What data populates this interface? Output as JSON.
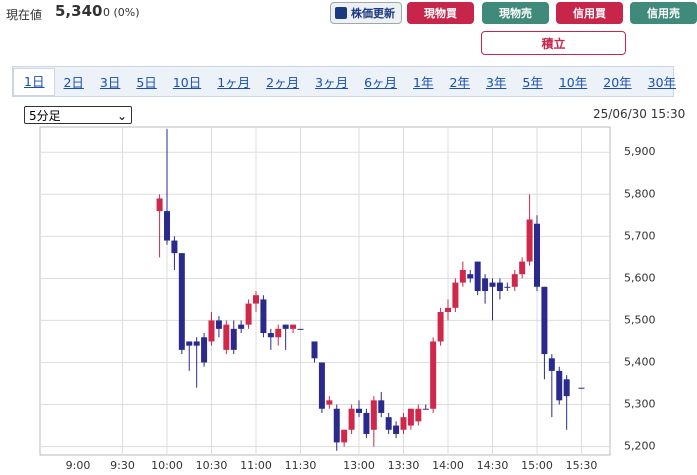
{
  "header": {
    "label": "現在値",
    "price": "5,340",
    "change": "0 (0%)"
  },
  "buttons": [
    "株価更新",
    "現物買",
    "現物売",
    "信用買",
    "信用売"
  ],
  "save_button": "積立",
  "tabs": [
    "1日",
    "2日",
    "3日",
    "5日",
    "10日",
    "1ヶ月",
    "2ヶ月",
    "3ヶ月",
    "6ヶ月",
    "1年",
    "2年",
    "3年",
    "5年",
    "10年",
    "20年",
    "30年"
  ],
  "interval_select": "5分足",
  "timestamp": "25/06/30 15:30",
  "chart_data": {
    "type": "candlestick",
    "up_color": "#d0284a",
    "down_color": "#2a2a8c",
    "grid": true,
    "x": [
      "9:55",
      "10:00",
      "10:05",
      "10:10",
      "10:15",
      "10:20",
      "10:25",
      "10:30",
      "10:35",
      "10:40",
      "10:45",
      "10:50",
      "10:55",
      "11:00",
      "11:05",
      "11:10",
      "11:15",
      "11:20",
      "11:25",
      "11:30",
      "12:30",
      "12:35",
      "12:40",
      "12:45",
      "12:50",
      "12:55",
      "13:00",
      "13:05",
      "13:10",
      "13:15",
      "13:20",
      "13:25",
      "13:30",
      "13:35",
      "13:40",
      "13:45",
      "13:50",
      "13:55",
      "14:00",
      "14:05",
      "14:10",
      "14:15",
      "14:20",
      "14:25",
      "14:30",
      "14:35",
      "14:40",
      "14:45",
      "14:50",
      "14:55",
      "15:00",
      "15:05",
      "15:10",
      "15:15",
      "15:20",
      "15:30"
    ],
    "open": [
      5760,
      5760,
      5690,
      5660,
      5450,
      5450,
      5460,
      5450,
      5500,
      5430,
      5480,
      5490,
      5490,
      5540,
      5550,
      5470,
      5460,
      5490,
      5480,
      5480,
      5450,
      5400,
      5300,
      5290,
      5210,
      5240,
      5290,
      5280,
      5240,
      5310,
      5270,
      5250,
      5240,
      5250,
      5260,
      5290,
      5290,
      5450,
      5520,
      5530,
      5590,
      5610,
      5640,
      5600,
      5590,
      5590,
      5580,
      5580,
      5610,
      5640,
      5730,
      5580,
      5410,
      5380,
      5360,
      5340
    ],
    "high": [
      5800,
      5955,
      5700,
      5660,
      5450,
      5460,
      5470,
      5520,
      5510,
      5500,
      5500,
      5500,
      5550,
      5570,
      5560,
      5480,
      5490,
      5490,
      5490,
      5480,
      5450,
      5400,
      5320,
      5300,
      5240,
      5300,
      5310,
      5290,
      5320,
      5330,
      5280,
      5260,
      5280,
      5290,
      5300,
      5300,
      5460,
      5530,
      5550,
      5600,
      5640,
      5620,
      5640,
      5610,
      5600,
      5600,
      5590,
      5620,
      5650,
      5800,
      5750,
      5580,
      5420,
      5390,
      5370,
      5340
    ],
    "low": [
      5650,
      5680,
      5620,
      5420,
      5380,
      5340,
      5390,
      5440,
      5460,
      5420,
      5420,
      5470,
      5480,
      5520,
      5460,
      5430,
      5440,
      5430,
      5470,
      5480,
      5400,
      5280,
      5290,
      5190,
      5200,
      5230,
      5270,
      5220,
      5200,
      5270,
      5230,
      5220,
      5230,
      5240,
      5250,
      5290,
      5280,
      5440,
      5500,
      5520,
      5580,
      5590,
      5560,
      5540,
      5500,
      5550,
      5570,
      5570,
      5600,
      5630,
      5570,
      5360,
      5270,
      5300,
      5240,
      5340
    ],
    "close": [
      5790,
      5690,
      5660,
      5430,
      5440,
      5440,
      5400,
      5500,
      5480,
      5490,
      5430,
      5480,
      5540,
      5560,
      5470,
      5460,
      5480,
      5480,
      5490,
      5480,
      5410,
      5290,
      5310,
      5210,
      5240,
      5290,
      5280,
      5230,
      5310,
      5280,
      5240,
      5230,
      5270,
      5290,
      5290,
      5290,
      5450,
      5520,
      5530,
      5590,
      5620,
      5600,
      5570,
      5570,
      5580,
      5570,
      5580,
      5610,
      5640,
      5740,
      5580,
      5420,
      5380,
      5310,
      5320,
      5340
    ],
    "ylim": [
      5180,
      5960
    ],
    "yticks": [
      {
        "value": 5200,
        "label": "5,200"
      },
      {
        "value": 5300,
        "label": "5,300"
      },
      {
        "value": 5400,
        "label": "5,400"
      },
      {
        "value": 5500,
        "label": "5,500"
      },
      {
        "value": 5600,
        "label": "5,600"
      },
      {
        "value": 5700,
        "label": "5,700"
      },
      {
        "value": 5800,
        "label": "5,800"
      },
      {
        "value": 5900,
        "label": "5,900"
      }
    ],
    "xticks": [
      "9:00",
      "9:30",
      "10:00",
      "10:30",
      "11:00",
      "11:30",
      "13:00",
      "13:30",
      "14:00",
      "14:30",
      "15:00",
      "15:30"
    ]
  }
}
